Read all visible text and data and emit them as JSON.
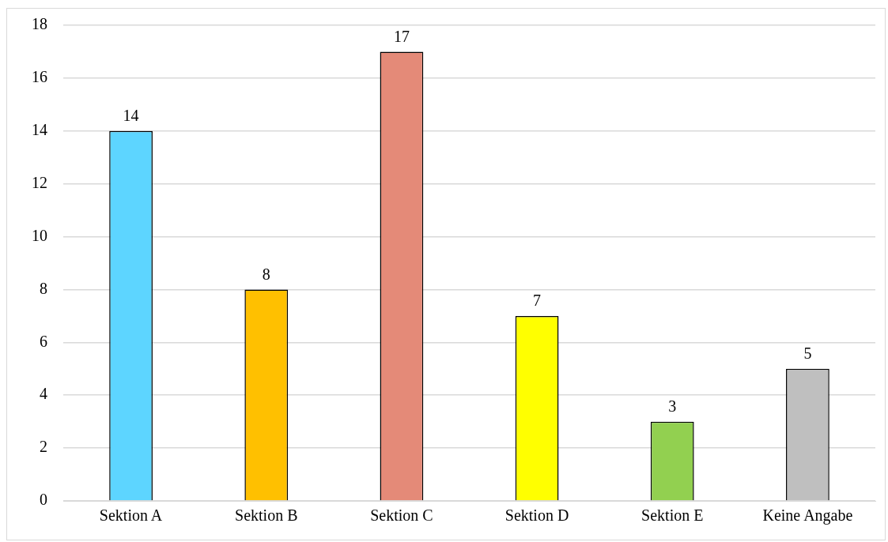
{
  "chart_data": {
    "type": "bar",
    "categories": [
      "Sektion A",
      "Sektion B",
      "Sektion C",
      "Sektion D",
      "Sektion E",
      "Keine Angabe"
    ],
    "values": [
      14,
      8,
      17,
      7,
      3,
      5
    ],
    "colors": [
      "#5dd5ff",
      "#ffc000",
      "#e48a78",
      "#ffff00",
      "#92d050",
      "#bfbfbf"
    ],
    "ylim": [
      0,
      18
    ],
    "yticks": [
      0,
      2,
      4,
      6,
      8,
      10,
      12,
      14,
      16,
      18
    ],
    "grid": "y",
    "data_labels": true,
    "legend": false
  }
}
